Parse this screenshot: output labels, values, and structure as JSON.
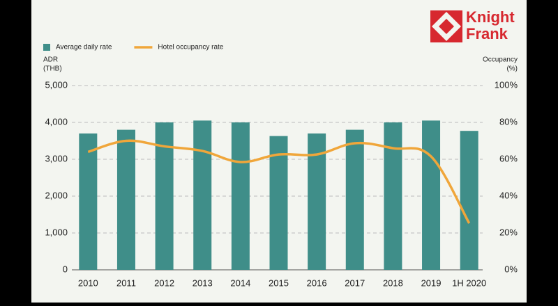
{
  "logo": {
    "lines": [
      "Knight",
      "Frank"
    ]
  },
  "chart_data": {
    "type": "bar-line",
    "categories": [
      "2010",
      "2011",
      "2012",
      "2013",
      "2014",
      "2015",
      "2016",
      "2017",
      "2018",
      "2019",
      "1H 2020"
    ],
    "series": [
      {
        "name": "Average daily rate",
        "type": "bar",
        "color": "#3f8e89",
        "values": [
          3700,
          3800,
          4000,
          4050,
          4000,
          3630,
          3700,
          3800,
          4000,
          4050,
          3770
        ]
      },
      {
        "name": "Hotel occupancy rate",
        "type": "line",
        "axis": "y2",
        "color": "#f0a63a",
        "values": [
          64,
          70,
          67,
          64.5,
          58.5,
          62.6,
          62.6,
          68.7,
          66,
          61.5,
          25.3
        ]
      }
    ],
    "ylabel": [
      "ADR",
      "(THB)"
    ],
    "y2label": [
      "Occupancy",
      "(%)"
    ],
    "ylim": [
      0,
      5000
    ],
    "yticks": [
      0,
      {
        "value": 1000,
        "label": "1,000"
      },
      {
        "value": 2000,
        "label": "2,000"
      },
      {
        "value": 3000,
        "label": "3,000"
      },
      {
        "value": 4000,
        "label": "4,000"
      },
      {
        "value": 5000,
        "label": "5,000"
      }
    ],
    "y2lim": [
      0,
      100
    ],
    "y2ticks": [
      {
        "value": 0,
        "label": "0%"
      },
      {
        "value": 20,
        "label": "20%"
      },
      {
        "value": 40,
        "label": "40%"
      },
      {
        "value": 60,
        "label": "60%"
      },
      {
        "value": 80,
        "label": "80%"
      },
      {
        "value": 100,
        "label": "100%"
      }
    ],
    "grid": true,
    "legend": "top-left"
  }
}
